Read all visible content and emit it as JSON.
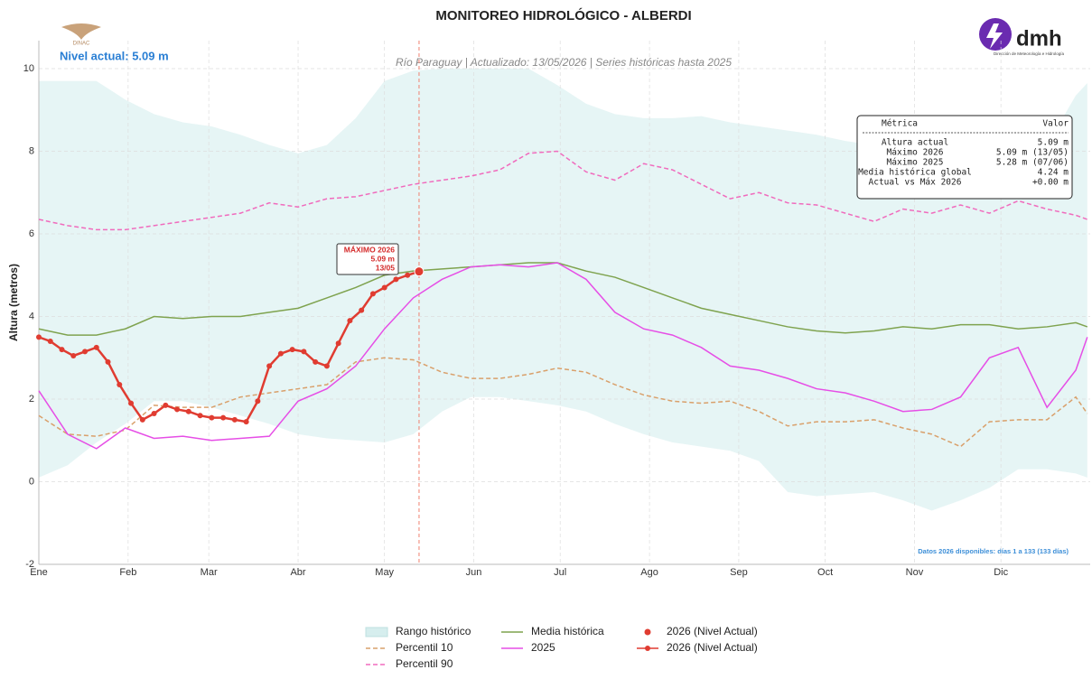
{
  "chart_data": {
    "type": "line",
    "title": "MONITOREO HIDROLÓGICO - ALBERDI",
    "subtitle": "Río Paraguay | Actualizado: 13/05/2026 | Series históricas hasta 2025",
    "current_level": "Nivel actual: 5.09 m",
    "ylabel": "Altura (metros)",
    "footnote": "Datos 2026 disponibles: días 1 a 133 (133 días)",
    "logos": {
      "left": "DINAC",
      "right": "dmh",
      "right_sub": "Dirección de Meteorología e Hidrología"
    },
    "grid": true,
    "xlim": [
      1,
      366
    ],
    "xticks": [
      {
        "value": 1,
        "label": "Ene"
      },
      {
        "value": 32,
        "label": "Feb"
      },
      {
        "value": 60,
        "label": "Mar"
      },
      {
        "value": 91,
        "label": "Abr"
      },
      {
        "value": 121,
        "label": "May"
      },
      {
        "value": 152,
        "label": "Jun"
      },
      {
        "value": 182,
        "label": "Jul"
      },
      {
        "value": 213,
        "label": "Ago"
      },
      {
        "value": 244,
        "label": "Sep"
      },
      {
        "value": 274,
        "label": "Oct"
      },
      {
        "value": 305,
        "label": "Nov"
      },
      {
        "value": 335,
        "label": "Dic"
      }
    ],
    "ylim": [
      -2,
      10
    ],
    "yticks": [
      -2,
      0,
      2,
      4,
      6,
      8,
      10
    ],
    "vline": 133,
    "x": [
      1,
      11,
      21,
      31,
      41,
      51,
      61,
      71,
      81,
      91,
      101,
      111,
      121,
      131,
      141,
      151,
      161,
      171,
      181,
      191,
      201,
      211,
      221,
      231,
      241,
      251,
      261,
      271,
      281,
      291,
      301,
      311,
      321,
      331,
      341,
      351,
      361,
      365
    ],
    "band": {
      "name": "Rango histórico",
      "color": "#d6eeee",
      "upper": [
        9.7,
        9.7,
        9.7,
        9.25,
        8.9,
        8.7,
        8.6,
        8.4,
        8.15,
        7.95,
        8.15,
        8.8,
        9.7,
        9.95,
        10,
        10,
        10,
        10,
        9.6,
        9.15,
        8.9,
        8.8,
        8.8,
        8.85,
        8.7,
        8.6,
        8.5,
        8.4,
        8.25,
        8.15,
        7.95,
        7.85,
        7.7,
        7.6,
        7.5,
        8.15,
        9.35,
        9.65
      ],
      "lower": [
        0.1,
        0.4,
        0.95,
        1.4,
        1.95,
        1.95,
        1.8,
        1.6,
        1.4,
        1.15,
        1.05,
        1.0,
        0.95,
        1.15,
        1.7,
        2.05,
        2.05,
        1.95,
        1.85,
        1.7,
        1.4,
        1.15,
        0.95,
        0.85,
        0.75,
        0.5,
        -0.25,
        -0.35,
        -0.3,
        -0.25,
        -0.45,
        -0.7,
        -0.45,
        -0.15,
        0.3,
        0.3,
        0.2,
        0.1
      ]
    },
    "series": [
      {
        "name": "Percentil 10",
        "color": "#d9a06b",
        "dash": true,
        "values": [
          1.6,
          1.15,
          1.1,
          1.25,
          1.85,
          1.8,
          1.8,
          2.05,
          2.15,
          2.25,
          2.35,
          2.9,
          3.0,
          2.95,
          2.65,
          2.5,
          2.5,
          2.6,
          2.75,
          2.65,
          2.35,
          2.1,
          1.95,
          1.9,
          1.95,
          1.7,
          1.35,
          1.45,
          1.45,
          1.5,
          1.3,
          1.15,
          0.85,
          1.45,
          1.5,
          1.5,
          2.05,
          1.65
        ]
      },
      {
        "name": "Percentil 90",
        "color": "#f06bbd",
        "dash": true,
        "values": [
          6.35,
          6.2,
          6.1,
          6.1,
          6.2,
          6.3,
          6.4,
          6.5,
          6.75,
          6.65,
          6.85,
          6.9,
          7.05,
          7.2,
          7.3,
          7.4,
          7.55,
          7.95,
          8.0,
          7.5,
          7.3,
          7.7,
          7.55,
          7.2,
          6.85,
          7.0,
          6.75,
          6.7,
          6.5,
          6.3,
          6.6,
          6.5,
          6.7,
          6.5,
          6.8,
          6.6,
          6.45,
          6.35
        ]
      },
      {
        "name": "Media histórica",
        "color": "#7fa34f",
        "values": [
          3.7,
          3.55,
          3.55,
          3.7,
          4.0,
          3.95,
          4.0,
          4.0,
          4.1,
          4.2,
          4.45,
          4.7,
          5.0,
          5.1,
          5.15,
          5.2,
          5.25,
          5.3,
          5.3,
          5.1,
          4.95,
          4.7,
          4.45,
          4.2,
          4.05,
          3.9,
          3.75,
          3.65,
          3.6,
          3.65,
          3.75,
          3.7,
          3.8,
          3.8,
          3.7,
          3.75,
          3.85,
          3.75
        ]
      },
      {
        "name": "2025",
        "color": "#e64ee6",
        "values": [
          2.2,
          1.15,
          0.8,
          1.3,
          1.05,
          1.1,
          1.0,
          1.05,
          1.1,
          1.95,
          2.25,
          2.8,
          3.7,
          4.45,
          4.9,
          5.2,
          5.25,
          5.2,
          5.3,
          4.9,
          4.1,
          3.7,
          3.55,
          3.25,
          2.8,
          2.7,
          2.5,
          2.25,
          2.15,
          1.95,
          1.7,
          1.75,
          2.05,
          3.0,
          3.25,
          1.8,
          2.7,
          3.5
        ]
      },
      {
        "name": "2026 (Nivel Actual)",
        "color": "#e03c31",
        "markers": true,
        "x": [
          1,
          5,
          9,
          13,
          17,
          21,
          25,
          29,
          33,
          37,
          41,
          45,
          49,
          53,
          57,
          61,
          65,
          69,
          73,
          77,
          81,
          85,
          89,
          93,
          97,
          101,
          105,
          109,
          113,
          117,
          121,
          125,
          129,
          133
        ],
        "values": [
          3.5,
          3.4,
          3.2,
          3.05,
          3.15,
          3.25,
          2.9,
          2.35,
          1.9,
          1.5,
          1.65,
          1.85,
          1.75,
          1.7,
          1.6,
          1.55,
          1.55,
          1.5,
          1.45,
          1.95,
          2.8,
          3.1,
          3.2,
          3.15,
          2.9,
          2.8,
          3.35,
          3.9,
          4.15,
          4.55,
          4.7,
          4.9,
          5.0,
          5.09
        ]
      }
    ],
    "annotation": [
      "MÁXIMO 2026",
      "5.09 m",
      "13/05"
    ],
    "table": {
      "header": [
        "Métrica",
        "Valor"
      ],
      "rows": [
        [
          "Altura actual",
          "5.09 m"
        ],
        [
          "Máximo 2026",
          "5.09 m (13/05)"
        ],
        [
          "Máximo 2025",
          "5.28 m (07/06)"
        ],
        [
          "Media histórica global",
          "4.24 m"
        ],
        [
          "Actual vs Máx 2026",
          "+0.00 m"
        ]
      ]
    }
  }
}
